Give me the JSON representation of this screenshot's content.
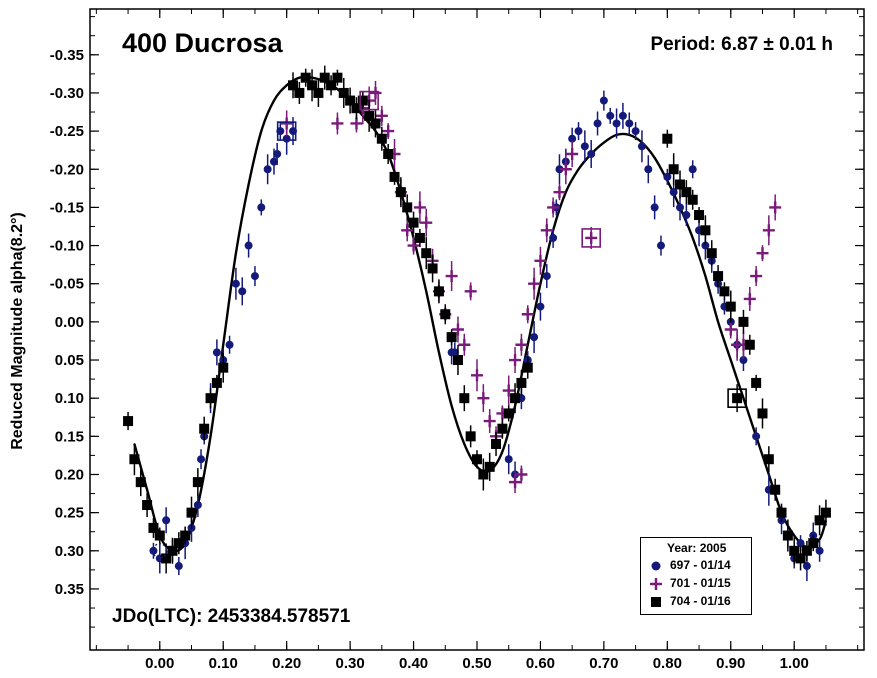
{
  "chart_data": {
    "type": "scatter",
    "title": "400 Ducrosa",
    "period_label": "Period: 6.87 ± 0.01 h",
    "epoch_label": "JDo(LTC): 2453384.578571",
    "xlabel": "",
    "ylabel": "Reduced Magnitude alpha(8.2°)",
    "xlim": [
      -0.11,
      1.11
    ],
    "ylim": [
      -0.41,
      0.43
    ],
    "y_inverted": false,
    "x_ticks": [
      "0.00",
      "0.10",
      "0.20",
      "0.30",
      "0.40",
      "0.50",
      "0.60",
      "0.70",
      "0.80",
      "0.90",
      "1.00"
    ],
    "y_ticks": [
      "-0.35",
      "-0.30",
      "-0.25",
      "-0.20",
      "-0.15",
      "-0.10",
      "-0.05",
      "0.00",
      "0.05",
      "0.10",
      "0.15",
      "0.20",
      "0.25",
      "0.30",
      "0.35"
    ],
    "grid": false,
    "legend_position": "bottom-right",
    "legend_title": "Year: 2005",
    "series": [
      {
        "name": "697 - 01/14",
        "marker": "circle",
        "color": "#141a7a",
        "points": [
          [
            -0.01,
            0.3
          ],
          [
            0.0,
            0.31
          ],
          [
            0.01,
            0.26
          ],
          [
            0.02,
            0.3
          ],
          [
            0.03,
            0.32
          ],
          [
            0.04,
            0.29
          ],
          [
            0.05,
            0.27
          ],
          [
            0.06,
            0.24
          ],
          [
            0.065,
            0.18
          ],
          [
            0.07,
            0.15
          ],
          [
            0.08,
            0.1
          ],
          [
            0.09,
            0.04
          ],
          [
            0.1,
            0.05
          ],
          [
            0.11,
            0.03
          ],
          [
            0.12,
            -0.05
          ],
          [
            0.13,
            -0.04
          ],
          [
            0.14,
            -0.1
          ],
          [
            0.15,
            -0.06
          ],
          [
            0.16,
            -0.15
          ],
          [
            0.17,
            -0.2
          ],
          [
            0.18,
            -0.21
          ],
          [
            0.185,
            -0.22
          ],
          [
            0.19,
            -0.25
          ],
          [
            0.2,
            -0.24
          ],
          [
            0.21,
            -0.25
          ],
          [
            0.46,
            0.04
          ],
          [
            0.465,
            0.04
          ],
          [
            0.54,
            0.14
          ],
          [
            0.55,
            0.18
          ],
          [
            0.56,
            0.2
          ],
          [
            0.57,
            0.1
          ],
          [
            0.58,
            0.05
          ],
          [
            0.59,
            0.02
          ],
          [
            0.6,
            -0.02
          ],
          [
            0.61,
            -0.06
          ],
          [
            0.62,
            -0.11
          ],
          [
            0.625,
            -0.15
          ],
          [
            0.63,
            -0.2
          ],
          [
            0.64,
            -0.21
          ],
          [
            0.65,
            -0.24
          ],
          [
            0.66,
            -0.25
          ],
          [
            0.67,
            -0.23
          ],
          [
            0.68,
            -0.22
          ],
          [
            0.69,
            -0.26
          ],
          [
            0.7,
            -0.29
          ],
          [
            0.71,
            -0.27
          ],
          [
            0.72,
            -0.26
          ],
          [
            0.73,
            -0.27
          ],
          [
            0.74,
            -0.26
          ],
          [
            0.75,
            -0.25
          ],
          [
            0.76,
            -0.23
          ],
          [
            0.77,
            -0.2
          ],
          [
            0.78,
            -0.15
          ],
          [
            0.79,
            -0.1
          ],
          [
            0.8,
            -0.19
          ],
          [
            0.81,
            -0.17
          ],
          [
            0.82,
            -0.15
          ],
          [
            0.83,
            -0.14
          ],
          [
            0.84,
            -0.2
          ],
          [
            0.85,
            -0.12
          ],
          [
            0.86,
            -0.1
          ],
          [
            0.87,
            -0.08
          ],
          [
            0.88,
            -0.05
          ],
          [
            0.89,
            -0.02
          ],
          [
            0.9,
            0.0
          ],
          [
            0.91,
            0.03
          ],
          [
            0.92,
            0.05
          ],
          [
            0.94,
            0.15
          ],
          [
            0.96,
            0.22
          ],
          [
            0.98,
            0.26
          ],
          [
            0.99,
            0.28
          ],
          [
            1.0,
            0.31
          ],
          [
            1.01,
            0.29
          ],
          [
            1.02,
            0.32
          ],
          [
            1.03,
            0.28
          ],
          [
            1.04,
            0.3
          ]
        ]
      },
      {
        "name": "701 - 01/15",
        "marker": "plus",
        "color": "#7a1a7a",
        "points": [
          [
            0.2,
            -0.26
          ],
          [
            0.28,
            -0.26
          ],
          [
            0.31,
            -0.26
          ],
          [
            0.32,
            -0.28
          ],
          [
            0.33,
            -0.29
          ],
          [
            0.34,
            -0.3
          ],
          [
            0.35,
            -0.27
          ],
          [
            0.36,
            -0.25
          ],
          [
            0.37,
            -0.22
          ],
          [
            0.38,
            -0.17
          ],
          [
            0.39,
            -0.12
          ],
          [
            0.4,
            -0.1
          ],
          [
            0.41,
            -0.15
          ],
          [
            0.42,
            -0.13
          ],
          [
            0.43,
            -0.08
          ],
          [
            0.44,
            -0.04
          ],
          [
            0.45,
            -0.01
          ],
          [
            0.46,
            -0.06
          ],
          [
            0.47,
            0.01
          ],
          [
            0.48,
            0.03
          ],
          [
            0.49,
            -0.04
          ],
          [
            0.5,
            0.07
          ],
          [
            0.51,
            0.1
          ],
          [
            0.52,
            0.13
          ],
          [
            0.53,
            0.15
          ],
          [
            0.54,
            0.12
          ],
          [
            0.55,
            0.09
          ],
          [
            0.56,
            0.05
          ],
          [
            0.57,
            0.03
          ],
          [
            0.58,
            -0.01
          ],
          [
            0.59,
            -0.05
          ],
          [
            0.6,
            -0.08
          ],
          [
            0.61,
            -0.12
          ],
          [
            0.62,
            -0.15
          ],
          [
            0.63,
            -0.17
          ],
          [
            0.64,
            -0.2
          ],
          [
            0.65,
            -0.22
          ],
          [
            0.68,
            -0.11
          ],
          [
            0.9,
            0.01
          ],
          [
            0.91,
            0.03
          ],
          [
            0.92,
            0.03
          ],
          [
            0.93,
            -0.03
          ],
          [
            0.94,
            -0.06
          ],
          [
            0.95,
            -0.09
          ],
          [
            0.96,
            -0.12
          ],
          [
            0.97,
            -0.15
          ],
          [
            0.56,
            0.21
          ],
          [
            0.57,
            0.2
          ]
        ]
      },
      {
        "name": "704 - 01/16",
        "marker": "square",
        "color": "#000000",
        "points": [
          [
            -0.05,
            0.13
          ],
          [
            -0.04,
            0.18
          ],
          [
            -0.03,
            0.21
          ],
          [
            -0.02,
            0.24
          ],
          [
            -0.01,
            0.27
          ],
          [
            0.0,
            0.28
          ],
          [
            0.01,
            0.31
          ],
          [
            0.02,
            0.3
          ],
          [
            0.03,
            0.29
          ],
          [
            0.04,
            0.28
          ],
          [
            0.05,
            0.25
          ],
          [
            0.06,
            0.21
          ],
          [
            0.07,
            0.14
          ],
          [
            0.08,
            0.1
          ],
          [
            0.09,
            0.08
          ],
          [
            0.1,
            0.06
          ],
          [
            0.21,
            -0.31
          ],
          [
            0.22,
            -0.3
          ],
          [
            0.23,
            -0.32
          ],
          [
            0.24,
            -0.31
          ],
          [
            0.25,
            -0.3
          ],
          [
            0.26,
            -0.32
          ],
          [
            0.27,
            -0.31
          ],
          [
            0.28,
            -0.32
          ],
          [
            0.29,
            -0.3
          ],
          [
            0.3,
            -0.29
          ],
          [
            0.31,
            -0.28
          ],
          [
            0.32,
            -0.29
          ],
          [
            0.33,
            -0.27
          ],
          [
            0.34,
            -0.26
          ],
          [
            0.35,
            -0.24
          ],
          [
            0.36,
            -0.22
          ],
          [
            0.37,
            -0.19
          ],
          [
            0.38,
            -0.17
          ],
          [
            0.39,
            -0.15
          ],
          [
            0.4,
            -0.13
          ],
          [
            0.41,
            -0.11
          ],
          [
            0.42,
            -0.09
          ],
          [
            0.43,
            -0.07
          ],
          [
            0.44,
            -0.04
          ],
          [
            0.45,
            -0.01
          ],
          [
            0.46,
            0.02
          ],
          [
            0.47,
            0.05
          ],
          [
            0.48,
            0.1
          ],
          [
            0.49,
            0.15
          ],
          [
            0.5,
            0.18
          ],
          [
            0.51,
            0.2
          ],
          [
            0.52,
            0.19
          ],
          [
            0.53,
            0.16
          ],
          [
            0.54,
            0.14
          ],
          [
            0.55,
            0.12
          ],
          [
            0.56,
            0.1
          ],
          [
            0.57,
            0.08
          ],
          [
            0.58,
            0.06
          ],
          [
            0.8,
            -0.24
          ],
          [
            0.81,
            -0.2
          ],
          [
            0.82,
            -0.18
          ],
          [
            0.83,
            -0.17
          ],
          [
            0.84,
            -0.16
          ],
          [
            0.85,
            -0.14
          ],
          [
            0.86,
            -0.12
          ],
          [
            0.87,
            -0.09
          ],
          [
            0.88,
            -0.06
          ],
          [
            0.89,
            -0.04
          ],
          [
            0.9,
            -0.02
          ],
          [
            0.91,
            0.1
          ],
          [
            0.92,
            0.0
          ],
          [
            0.93,
            0.03
          ],
          [
            0.94,
            0.08
          ],
          [
            0.95,
            0.12
          ],
          [
            0.96,
            0.18
          ],
          [
            0.97,
            0.22
          ],
          [
            0.98,
            0.25
          ],
          [
            0.99,
            0.28
          ],
          [
            1.0,
            0.3
          ],
          [
            1.01,
            0.31
          ],
          [
            1.02,
            0.3
          ],
          [
            1.03,
            0.29
          ],
          [
            1.04,
            0.26
          ],
          [
            1.05,
            0.25
          ]
        ]
      }
    ],
    "fit_curve": {
      "name": "",
      "color": "#000000",
      "points": [
        [
          -0.04,
          0.16
        ],
        [
          -0.02,
          0.22
        ],
        [
          0.0,
          0.28
        ],
        [
          0.02,
          0.3
        ],
        [
          0.04,
          0.29
        ],
        [
          0.06,
          0.24
        ],
        [
          0.08,
          0.15
        ],
        [
          0.1,
          0.03
        ],
        [
          0.12,
          -0.09
        ],
        [
          0.14,
          -0.18
        ],
        [
          0.16,
          -0.25
        ],
        [
          0.18,
          -0.29
        ],
        [
          0.2,
          -0.31
        ],
        [
          0.22,
          -0.32
        ],
        [
          0.24,
          -0.32
        ],
        [
          0.26,
          -0.315
        ],
        [
          0.28,
          -0.305
        ],
        [
          0.3,
          -0.29
        ],
        [
          0.32,
          -0.27
        ],
        [
          0.34,
          -0.25
        ],
        [
          0.36,
          -0.22
        ],
        [
          0.38,
          -0.17
        ],
        [
          0.4,
          -0.11
        ],
        [
          0.42,
          -0.04
        ],
        [
          0.44,
          0.04
        ],
        [
          0.46,
          0.11
        ],
        [
          0.48,
          0.16
        ],
        [
          0.5,
          0.19
        ],
        [
          0.52,
          0.195
        ],
        [
          0.54,
          0.17
        ],
        [
          0.56,
          0.11
        ],
        [
          0.58,
          0.03
        ],
        [
          0.6,
          -0.05
        ],
        [
          0.62,
          -0.12
        ],
        [
          0.64,
          -0.17
        ],
        [
          0.66,
          -0.2
        ],
        [
          0.68,
          -0.22
        ],
        [
          0.7,
          -0.235
        ],
        [
          0.72,
          -0.245
        ],
        [
          0.74,
          -0.245
        ],
        [
          0.76,
          -0.235
        ],
        [
          0.78,
          -0.215
        ],
        [
          0.8,
          -0.185
        ],
        [
          0.82,
          -0.15
        ],
        [
          0.84,
          -0.11
        ],
        [
          0.86,
          -0.06
        ],
        [
          0.88,
          0.0
        ],
        [
          0.9,
          0.05
        ],
        [
          0.92,
          0.1
        ],
        [
          0.94,
          0.15
        ],
        [
          0.96,
          0.2
        ],
        [
          0.98,
          0.25
        ],
        [
          1.0,
          0.28
        ],
        [
          1.02,
          0.295
        ],
        [
          1.04,
          0.285
        ],
        [
          1.05,
          0.26
        ]
      ]
    }
  }
}
